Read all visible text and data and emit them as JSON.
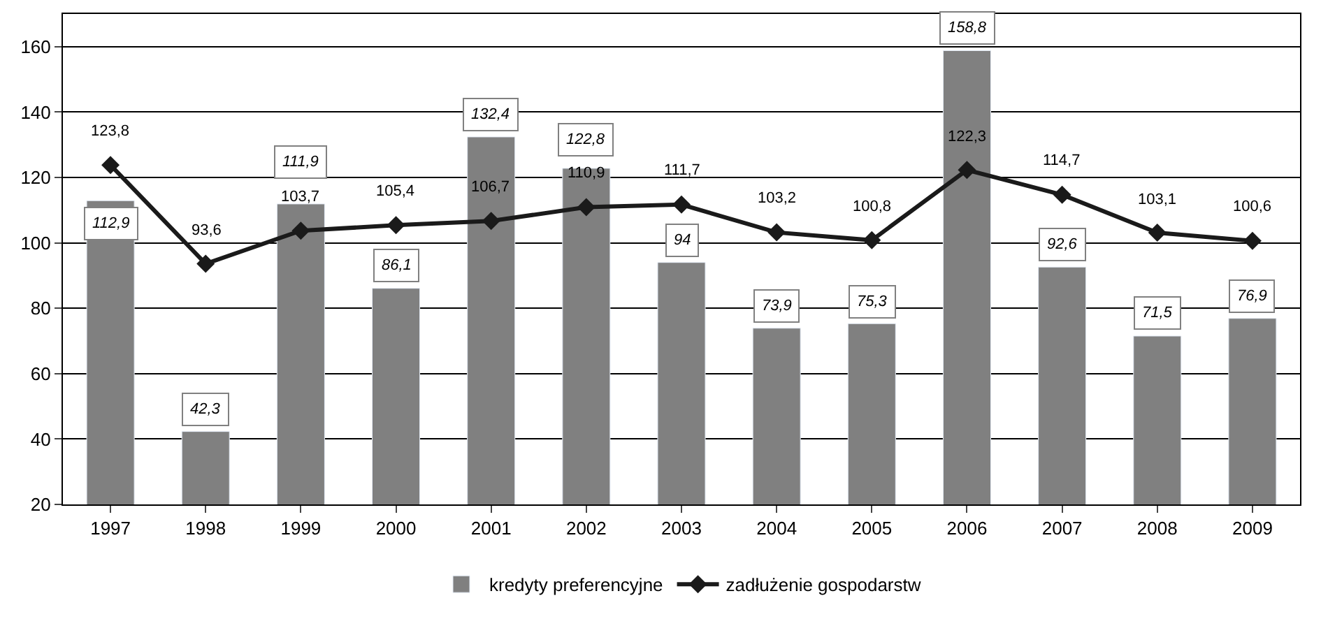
{
  "chart_data": {
    "type": "bar",
    "categories": [
      "1997",
      "1998",
      "1999",
      "2000",
      "2001",
      "2002",
      "2003",
      "2004",
      "2005",
      "2006",
      "2007",
      "2008",
      "2009"
    ],
    "series": [
      {
        "name": "kredyty preferencyjne",
        "color": "#808080",
        "values": [
          112.9,
          42.3,
          111.9,
          86.1,
          132.4,
          122.8,
          94,
          73.9,
          75.3,
          158.8,
          92.6,
          71.5,
          76.9
        ],
        "value_labels": [
          "112,9",
          "42,3",
          "111,9",
          "86,1",
          "132,4",
          "122,8",
          "94",
          "73,9",
          "75,3",
          "158,8",
          "92,6",
          "71,5",
          "76,9"
        ]
      },
      {
        "name": "zadłużenie gospodarstw",
        "type": "line",
        "color": "#1a1a1a",
        "marker": "diamond",
        "line_style": "solid",
        "values": [
          123.8,
          93.6,
          103.7,
          105.4,
          106.7,
          110.9,
          111.7,
          103.2,
          100.8,
          122.3,
          114.7,
          103.1,
          100.6
        ],
        "value_labels": [
          "123,8",
          "93,6",
          "103,7",
          "105,4",
          "106,7",
          "110,9",
          "111,7",
          "103,2",
          "100,8",
          "122,3",
          "114,7",
          "103,1",
          "100,6"
        ]
      }
    ],
    "ylim": [
      20,
      170
    ],
    "yticks": [
      20,
      40,
      60,
      80,
      100,
      120,
      140,
      160
    ],
    "grid": "y",
    "legend": "bottom"
  }
}
